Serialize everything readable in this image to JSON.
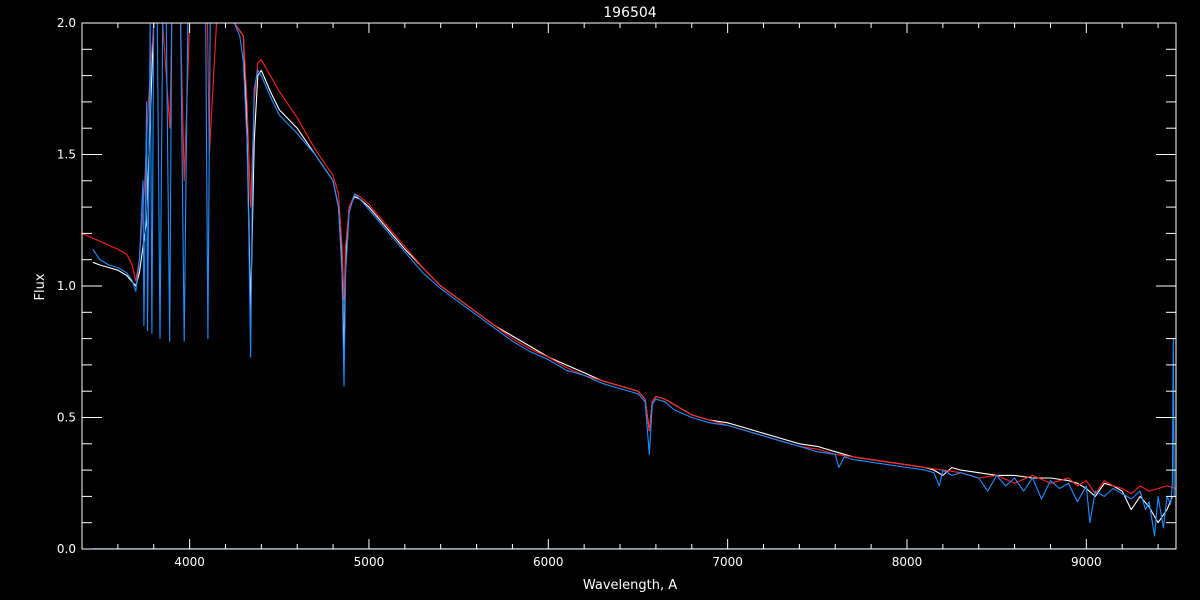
{
  "chart_data": {
    "type": "line",
    "title": "196504",
    "xlabel": "Wavelength, A",
    "ylabel": "Flux",
    "xlim": [
      3400,
      9500
    ],
    "ylim": [
      0.0,
      2.0
    ],
    "x_ticks": [
      4000,
      5000,
      6000,
      7000,
      8000,
      9000
    ],
    "y_ticks": [
      0.0,
      0.5,
      1.0,
      1.5,
      2.0
    ],
    "x_tick_labels": [
      "4000",
      "5000",
      "6000",
      "7000",
      "8000",
      "9000"
    ],
    "y_tick_labels": [
      "0.0",
      "0.5",
      "1.0",
      "1.5",
      "2.0"
    ],
    "background": "#000000",
    "axis_color": "#ffffff",
    "grid": false,
    "series": [
      {
        "color": "#ffffff",
        "x": [
          3460,
          3500,
          3550,
          3600,
          3650,
          3700,
          3720,
          3760,
          3800,
          3850,
          3900,
          3950,
          4000,
          4050,
          4100,
          4150,
          4200,
          4250,
          4300,
          4320,
          4340,
          4360,
          4380,
          4400,
          4450,
          4500,
          4600,
          4700,
          4800,
          4830,
          4850,
          4861,
          4870,
          4890,
          4920,
          4950,
          5000,
          5100,
          5200,
          5300,
          5400,
          5500,
          5600,
          5700,
          5800,
          5900,
          6000,
          6100,
          6200,
          6300,
          6400,
          6500,
          6540,
          6563,
          6580,
          6600,
          6650,
          6700,
          6800,
          6900,
          7000,
          7100,
          7200,
          7300,
          7400,
          7500,
          7600,
          7650,
          7700,
          7800,
          7900,
          8000,
          8100,
          8150,
          8200,
          8250,
          8300,
          8400,
          8500,
          8600,
          8700,
          8800,
          8900,
          8950,
          9000,
          9050,
          9100,
          9150,
          9200,
          9250,
          9300,
          9350,
          9400,
          9450,
          9480
        ],
        "y": [
          1.09,
          1.08,
          1.07,
          1.06,
          1.04,
          1.0,
          1.05,
          1.25,
          2.0,
          2.0,
          2.0,
          2.0,
          2.0,
          2.0,
          2.0,
          2.0,
          2.0,
          2.0,
          1.95,
          1.6,
          0.9,
          1.55,
          1.8,
          1.82,
          1.74,
          1.67,
          1.6,
          1.5,
          1.4,
          1.3,
          1.1,
          0.72,
          1.1,
          1.3,
          1.34,
          1.33,
          1.3,
          1.22,
          1.14,
          1.07,
          1.0,
          0.95,
          0.9,
          0.85,
          0.81,
          0.77,
          0.73,
          0.7,
          0.67,
          0.64,
          0.62,
          0.6,
          0.57,
          0.45,
          0.56,
          0.58,
          0.57,
          0.55,
          0.51,
          0.49,
          0.48,
          0.46,
          0.44,
          0.42,
          0.4,
          0.39,
          0.37,
          0.36,
          0.35,
          0.34,
          0.33,
          0.32,
          0.31,
          0.3,
          0.28,
          0.31,
          0.3,
          0.29,
          0.28,
          0.28,
          0.27,
          0.27,
          0.26,
          0.25,
          0.23,
          0.2,
          0.25,
          0.24,
          0.22,
          0.15,
          0.2,
          0.16,
          0.1,
          0.15,
          0.2
        ]
      },
      {
        "color": "#ff2020",
        "x": [
          3400,
          3500,
          3600,
          3650,
          3680,
          3700,
          3720,
          3750,
          3770,
          3800,
          3850,
          3890,
          3900,
          3950,
          3970,
          4000,
          4050,
          4100,
          4110,
          4150,
          4200,
          4250,
          4300,
          4320,
          4340,
          4360,
          4380,
          4400,
          4450,
          4500,
          4600,
          4700,
          4800,
          4830,
          4850,
          4861,
          4870,
          4890,
          4920,
          4950,
          5000,
          5100,
          5200,
          5300,
          5400,
          5500,
          5600,
          5700,
          5800,
          5900,
          6000,
          6100,
          6200,
          6300,
          6400,
          6500,
          6540,
          6563,
          6580,
          6600,
          6650,
          6700,
          6800,
          6900,
          7000,
          7100,
          7200,
          7300,
          7400,
          7500,
          7600,
          7700,
          7800,
          7900,
          8000,
          8100,
          8200,
          8300,
          8400,
          8500,
          8600,
          8700,
          8800,
          8900,
          8950,
          9000,
          9050,
          9100,
          9150,
          9200,
          9250,
          9300,
          9350,
          9400,
          9450,
          9500
        ],
        "y": [
          1.2,
          1.17,
          1.14,
          1.12,
          1.08,
          1.02,
          1.1,
          1.4,
          1.7,
          2.0,
          2.0,
          1.6,
          2.0,
          2.0,
          1.4,
          2.0,
          2.0,
          2.0,
          1.5,
          2.0,
          2.0,
          2.0,
          1.95,
          1.7,
          1.3,
          1.7,
          1.85,
          1.86,
          1.8,
          1.74,
          1.64,
          1.52,
          1.42,
          1.35,
          1.15,
          0.95,
          1.15,
          1.3,
          1.35,
          1.34,
          1.31,
          1.23,
          1.15,
          1.07,
          1.0,
          0.95,
          0.9,
          0.85,
          0.8,
          0.76,
          0.73,
          0.69,
          0.66,
          0.64,
          0.62,
          0.6,
          0.57,
          0.45,
          0.56,
          0.58,
          0.57,
          0.55,
          0.51,
          0.49,
          0.47,
          0.45,
          0.43,
          0.41,
          0.39,
          0.38,
          0.36,
          0.35,
          0.34,
          0.33,
          0.32,
          0.31,
          0.3,
          0.29,
          0.27,
          0.28,
          0.25,
          0.28,
          0.25,
          0.27,
          0.24,
          0.26,
          0.21,
          0.26,
          0.24,
          0.23,
          0.21,
          0.24,
          0.22,
          0.23,
          0.24,
          0.23
        ]
      },
      {
        "color": "#1e8fff",
        "x": [
          3460,
          3500,
          3550,
          3600,
          3650,
          3680,
          3700,
          3720,
          3740,
          3745,
          3760,
          3765,
          3780,
          3790,
          3800,
          3820,
          3835,
          3850,
          3870,
          3889,
          3900,
          3930,
          3950,
          3970,
          3990,
          4000,
          4050,
          4090,
          4102,
          4115,
          4150,
          4200,
          4250,
          4280,
          4300,
          4320,
          4330,
          4340,
          4350,
          4360,
          4380,
          4400,
          4450,
          4500,
          4600,
          4700,
          4800,
          4830,
          4850,
          4861,
          4870,
          4890,
          4920,
          4950,
          5000,
          5100,
          5200,
          5300,
          5400,
          5500,
          5600,
          5700,
          5800,
          5900,
          6000,
          6100,
          6200,
          6300,
          6400,
          6500,
          6540,
          6563,
          6580,
          6600,
          6650,
          6700,
          6800,
          6900,
          7000,
          7100,
          7200,
          7300,
          7400,
          7500,
          7600,
          7620,
          7650,
          7700,
          7800,
          7900,
          8000,
          8100,
          8150,
          8180,
          8200,
          8250,
          8300,
          8400,
          8450,
          8500,
          8550,
          8600,
          8650,
          8700,
          8750,
          8800,
          8850,
          8900,
          8950,
          9000,
          9020,
          9050,
          9100,
          9150,
          9200,
          9250,
          9300,
          9330,
          9350,
          9380,
          9400,
          9430,
          9450,
          9470,
          9480,
          9485,
          9490
        ],
        "y": [
          1.14,
          1.1,
          1.08,
          1.07,
          1.05,
          1.02,
          0.98,
          1.1,
          1.4,
          0.85,
          1.7,
          0.83,
          2.0,
          0.82,
          2.0,
          2.0,
          0.8,
          2.0,
          2.0,
          0.79,
          2.0,
          2.0,
          2.0,
          0.79,
          2.0,
          2.0,
          2.0,
          2.0,
          0.8,
          2.0,
          2.0,
          2.0,
          2.0,
          1.95,
          1.85,
          1.55,
          1.2,
          0.73,
          1.4,
          1.75,
          1.82,
          1.8,
          1.72,
          1.65,
          1.58,
          1.5,
          1.4,
          1.3,
          1.05,
          0.62,
          1.05,
          1.28,
          1.35,
          1.33,
          1.29,
          1.21,
          1.13,
          1.05,
          0.99,
          0.94,
          0.89,
          0.84,
          0.79,
          0.75,
          0.72,
          0.68,
          0.66,
          0.63,
          0.61,
          0.59,
          0.56,
          0.36,
          0.55,
          0.57,
          0.56,
          0.53,
          0.5,
          0.48,
          0.47,
          0.45,
          0.43,
          0.41,
          0.39,
          0.37,
          0.36,
          0.31,
          0.35,
          0.34,
          0.33,
          0.32,
          0.31,
          0.3,
          0.29,
          0.24,
          0.3,
          0.28,
          0.29,
          0.27,
          0.22,
          0.28,
          0.24,
          0.27,
          0.22,
          0.27,
          0.19,
          0.26,
          0.23,
          0.25,
          0.18,
          0.24,
          0.1,
          0.22,
          0.2,
          0.23,
          0.21,
          0.19,
          0.22,
          0.15,
          0.18,
          0.05,
          0.2,
          0.08,
          0.2,
          0.17,
          0.25,
          0.8,
          0.2
        ]
      },
      {
        "color": "#1e8fff",
        "x": [
          3460,
          9500
        ],
        "y": [
          0.0,
          0.0
        ]
      }
    ]
  }
}
